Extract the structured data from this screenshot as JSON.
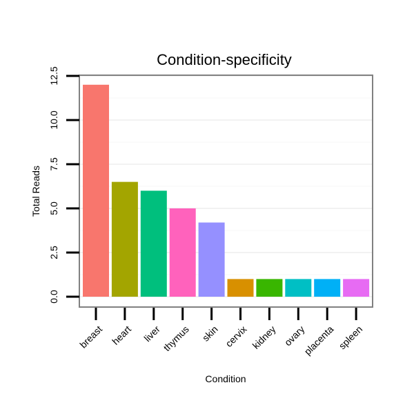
{
  "chart_data": {
    "type": "bar",
    "title": "Condition-specificity",
    "xlabel": "Condition",
    "ylabel": "Total Reads",
    "categories": [
      "breast",
      "heart",
      "liver",
      "thymus",
      "skin",
      "cervix",
      "kidney",
      "ovary",
      "placenta",
      "spleen"
    ],
    "values": [
      12,
      6.5,
      6,
      5,
      4.2,
      1,
      1,
      1,
      1,
      1
    ],
    "colors": [
      "#F8766D",
      "#A3A500",
      "#00BF7D",
      "#FF62BC",
      "#9590FF",
      "#D89000",
      "#39B600",
      "#00BFC4",
      "#00B0F6",
      "#E76BF3"
    ],
    "yticks": [
      "0.0",
      "2.5",
      "5.0",
      "7.5",
      "10.0",
      "12.5"
    ],
    "ylim": [
      -0.55,
      12.6
    ],
    "grid": true,
    "legend": "none"
  }
}
